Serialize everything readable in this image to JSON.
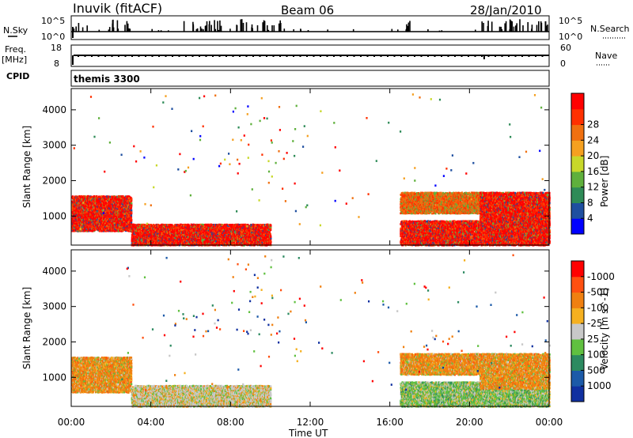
{
  "header": {
    "station": "Inuvik (fitACF)",
    "beam": "Beam 06",
    "date": "28/Jan/2010"
  },
  "top_panels": {
    "nsky_label": "N.Sky",
    "nsky_tick_hi": "10^5",
    "nsky_tick_lo": "10^0",
    "nsearch_label": "N.Search",
    "nsearch_tick_hi": "10^5",
    "nsearch_tick_lo": "10^0",
    "freq_label": "Freq.",
    "freq_unit": "[MHz]",
    "freq_tick_hi": "18",
    "freq_tick_lo": "8",
    "nave_label": "Nave",
    "nave_tick_hi": "60",
    "nave_tick_lo": "0",
    "cpid_label": "CPID",
    "cpid_value": "themis 3300"
  },
  "colors": {
    "power_scale": [
      "#0000ff",
      "#1f4fa0",
      "#2e8b57",
      "#5fb03c",
      "#c8d82a",
      "#f5a020",
      "#f07010",
      "#ff3000",
      "#ff0000"
    ],
    "velocity_scale": [
      "#1030a0",
      "#1c5aa8",
      "#2c8a60",
      "#60c040",
      "#c8c8c8",
      "#f5b020",
      "#f08010",
      "#ff5010",
      "#ff0000"
    ]
  },
  "chart_data": [
    {
      "type": "heatmap",
      "name": "power",
      "ylabel": "Slant Range [km]",
      "yticks": [
        "1000",
        "2000",
        "3000",
        "4000"
      ],
      "xlabel": "Time UT",
      "xticks": [
        "00:00",
        "04:00",
        "08:00",
        "12:00",
        "16:00",
        "20:00",
        "00:00"
      ],
      "xlim_hours": [
        0,
        24
      ],
      "ylim_km": [
        180,
        4600
      ],
      "colorbar_label": "Power [dB]",
      "colorbar_ticks": [
        "4",
        "8",
        "12",
        "16",
        "20",
        "24",
        "28"
      ],
      "bands": [
        {
          "t0": 0.0,
          "t1": 3.0,
          "r0": 600,
          "r1": 1600,
          "dominant": "red"
        },
        {
          "t0": 3.0,
          "t1": 10.0,
          "r0": 200,
          "r1": 800,
          "dominant": "red"
        },
        {
          "t0": 16.5,
          "t1": 24.0,
          "r0": 200,
          "r1": 900,
          "dominant": "red"
        },
        {
          "t0": 16.5,
          "t1": 20.5,
          "r0": 1100,
          "r1": 1700,
          "dominant": "orange"
        },
        {
          "t0": 20.5,
          "t1": 24.0,
          "r0": 700,
          "r1": 1700,
          "dominant": "red"
        }
      ]
    },
    {
      "type": "heatmap",
      "name": "velocity",
      "ylabel": "Slant Range [km]",
      "yticks": [
        "1000",
        "2000",
        "3000",
        "4000"
      ],
      "xlabel": "Time UT",
      "xticks": [
        "00:00",
        "04:00",
        "08:00",
        "12:00",
        "16:00",
        "20:00",
        "00:00"
      ],
      "xlim_hours": [
        0,
        24
      ],
      "ylim_km": [
        180,
        4600
      ],
      "colorbar_label": "Velocity [m s^-1]",
      "colorbar_ticks": [
        "-1000",
        "-500",
        "-100",
        "-25",
        "25",
        "100",
        "500",
        "1000"
      ],
      "bands": [
        {
          "t0": 0.0,
          "t1": 3.0,
          "r0": 600,
          "r1": 1600,
          "dominant": "orange"
        },
        {
          "t0": 3.0,
          "t1": 10.0,
          "r0": 200,
          "r1": 800,
          "dominant": "gray"
        },
        {
          "t0": 16.5,
          "t1": 24.0,
          "r0": 200,
          "r1": 900,
          "dominant": "green"
        },
        {
          "t0": 16.5,
          "t1": 20.5,
          "r0": 1100,
          "r1": 1700,
          "dominant": "orange"
        },
        {
          "t0": 20.5,
          "t1": 24.0,
          "r0": 700,
          "r1": 1700,
          "dominant": "orange"
        }
      ]
    }
  ]
}
